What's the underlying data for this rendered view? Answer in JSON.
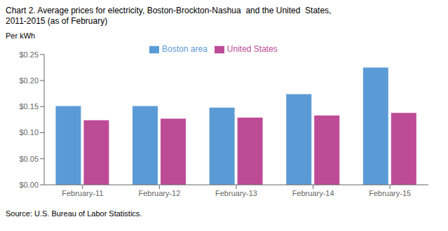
{
  "chart_data": {
    "type": "bar",
    "title": "Chart 2. Average prices for electricity, Boston-Brockton-Nashua  and the United  States,",
    "subtitle": "2011-2015 (as of February)",
    "y_label": "Per kWh",
    "annotations": [
      "Source: U.S. Bureau of Labor Statistics."
    ],
    "categories": [
      "February-11",
      "February-12",
      "February-13",
      "February-14",
      "February-15"
    ],
    "series": [
      {
        "name": "Boston area",
        "color": "#5B9BD5",
        "values": [
          0.151,
          0.151,
          0.148,
          0.174,
          0.225
        ]
      },
      {
        "name": "United States",
        "color": "#BE4B96",
        "values": [
          0.124,
          0.127,
          0.129,
          0.133,
          0.138
        ]
      }
    ],
    "ylim": [
      0,
      0.25
    ],
    "yticks": [
      {
        "value": 0,
        "label": "$0.00"
      },
      {
        "value": 0.05,
        "label": "$0.05"
      },
      {
        "value": 0.1,
        "label": "$0.10"
      },
      {
        "value": 0.15,
        "label": "$0.15"
      },
      {
        "value": 0.2,
        "label": "$0.20"
      },
      {
        "value": 0.25,
        "label": "$0.25"
      }
    ],
    "grid": false,
    "legend": "top"
  }
}
